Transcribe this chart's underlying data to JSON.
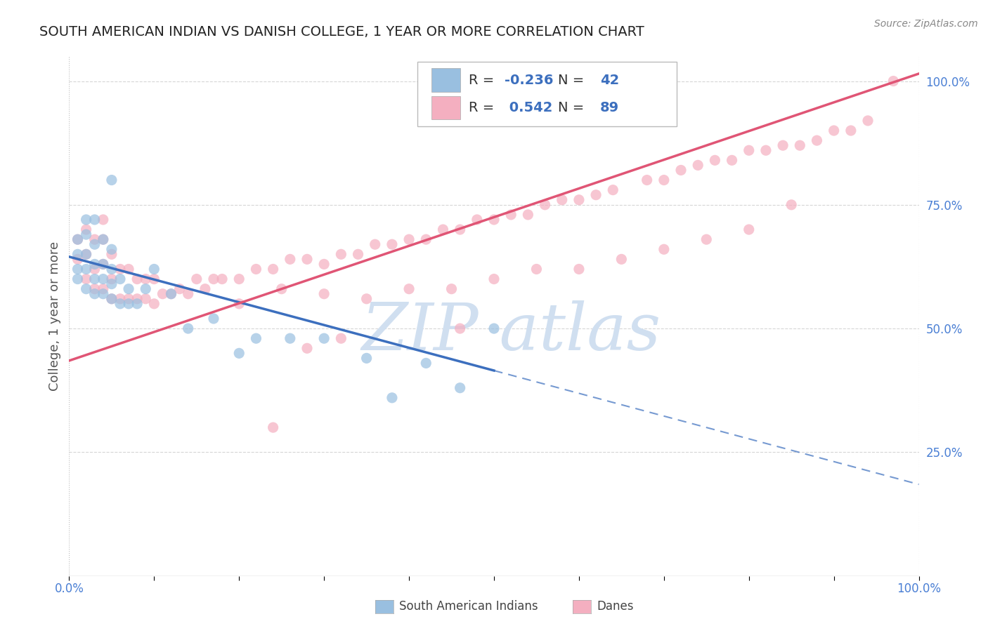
{
  "title": "SOUTH AMERICAN INDIAN VS DANISH COLLEGE, 1 YEAR OR MORE CORRELATION CHART",
  "source": "Source: ZipAtlas.com",
  "ylabel": "College, 1 year or more",
  "R_blue": -0.236,
  "N_blue": 42,
  "R_pink": 0.542,
  "N_pink": 89,
  "blue_color": "#99bfe0",
  "pink_color": "#f4afc0",
  "blue_line_color": "#3c6fbe",
  "pink_line_color": "#e05575",
  "blue_line_intercept": 0.645,
  "blue_line_slope": -0.46,
  "pink_line_intercept": 0.435,
  "pink_line_slope": 0.58,
  "blue_x": [
    0.01,
    0.01,
    0.01,
    0.01,
    0.02,
    0.02,
    0.02,
    0.02,
    0.02,
    0.03,
    0.03,
    0.03,
    0.03,
    0.03,
    0.04,
    0.04,
    0.04,
    0.04,
    0.05,
    0.05,
    0.05,
    0.05,
    0.05,
    0.06,
    0.06,
    0.07,
    0.07,
    0.08,
    0.09,
    0.1,
    0.12,
    0.14,
    0.17,
    0.2,
    0.22,
    0.26,
    0.3,
    0.35,
    0.38,
    0.42,
    0.46,
    0.5
  ],
  "blue_y": [
    0.6,
    0.62,
    0.65,
    0.68,
    0.58,
    0.62,
    0.65,
    0.69,
    0.72,
    0.57,
    0.6,
    0.63,
    0.67,
    0.72,
    0.57,
    0.6,
    0.63,
    0.68,
    0.56,
    0.59,
    0.62,
    0.66,
    0.8,
    0.55,
    0.6,
    0.55,
    0.58,
    0.55,
    0.58,
    0.62,
    0.57,
    0.5,
    0.52,
    0.45,
    0.48,
    0.48,
    0.48,
    0.44,
    0.36,
    0.43,
    0.38,
    0.5
  ],
  "pink_x": [
    0.01,
    0.01,
    0.02,
    0.02,
    0.02,
    0.03,
    0.03,
    0.03,
    0.04,
    0.04,
    0.04,
    0.04,
    0.05,
    0.05,
    0.05,
    0.06,
    0.06,
    0.07,
    0.07,
    0.08,
    0.08,
    0.09,
    0.09,
    0.1,
    0.1,
    0.11,
    0.12,
    0.13,
    0.14,
    0.15,
    0.16,
    0.17,
    0.18,
    0.2,
    0.22,
    0.24,
    0.26,
    0.28,
    0.3,
    0.32,
    0.34,
    0.36,
    0.38,
    0.4,
    0.42,
    0.44,
    0.46,
    0.48,
    0.5,
    0.52,
    0.54,
    0.56,
    0.58,
    0.6,
    0.62,
    0.64,
    0.68,
    0.7,
    0.72,
    0.74,
    0.76,
    0.78,
    0.8,
    0.82,
    0.84,
    0.86,
    0.88,
    0.9,
    0.92,
    0.94,
    0.97,
    0.2,
    0.25,
    0.3,
    0.35,
    0.4,
    0.45,
    0.5,
    0.55,
    0.6,
    0.65,
    0.7,
    0.75,
    0.8,
    0.85,
    0.24,
    0.28,
    0.32,
    0.46
  ],
  "pink_y": [
    0.64,
    0.68,
    0.6,
    0.65,
    0.7,
    0.58,
    0.62,
    0.68,
    0.58,
    0.63,
    0.68,
    0.72,
    0.56,
    0.6,
    0.65,
    0.56,
    0.62,
    0.56,
    0.62,
    0.56,
    0.6,
    0.56,
    0.6,
    0.55,
    0.6,
    0.57,
    0.57,
    0.58,
    0.57,
    0.6,
    0.58,
    0.6,
    0.6,
    0.6,
    0.62,
    0.62,
    0.64,
    0.64,
    0.63,
    0.65,
    0.65,
    0.67,
    0.67,
    0.68,
    0.68,
    0.7,
    0.7,
    0.72,
    0.72,
    0.73,
    0.73,
    0.75,
    0.76,
    0.76,
    0.77,
    0.78,
    0.8,
    0.8,
    0.82,
    0.83,
    0.84,
    0.84,
    0.86,
    0.86,
    0.87,
    0.87,
    0.88,
    0.9,
    0.9,
    0.92,
    1.0,
    0.55,
    0.58,
    0.57,
    0.56,
    0.58,
    0.58,
    0.6,
    0.62,
    0.62,
    0.64,
    0.66,
    0.68,
    0.7,
    0.75,
    0.3,
    0.46,
    0.48,
    0.5
  ],
  "watermark_text": "ZIP atlas",
  "watermark_color": "#d0dff0",
  "grid_color": "#cccccc",
  "background_color": "#ffffff",
  "title_fontsize": 14,
  "axis_label_fontsize": 13,
  "tick_fontsize": 12,
  "legend_fontsize": 14,
  "scatter_size": 120,
  "scatter_alpha": 0.7
}
